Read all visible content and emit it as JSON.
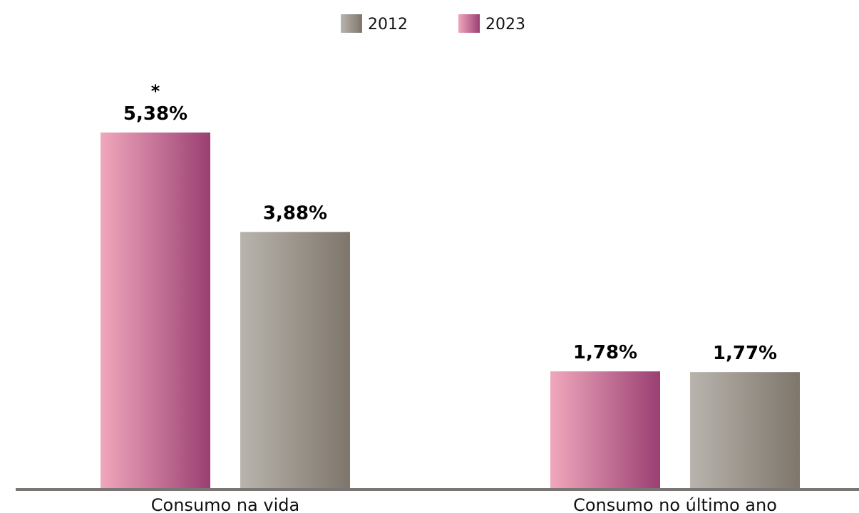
{
  "chart_data": {
    "type": "bar",
    "categories": [
      "Consumo na vida",
      "Consumo no último ano"
    ],
    "series": [
      {
        "name": "2023",
        "values": [
          5.38,
          1.78
        ],
        "labels": [
          "5,38%",
          "1,78%"
        ],
        "gradient": [
          "#f0a8bc",
          "#9a3f72"
        ]
      },
      {
        "name": "2012",
        "values": [
          3.88,
          1.77
        ],
        "labels": [
          "3,88%",
          "1,77%"
        ],
        "gradient": [
          "#b9b4ae",
          "#7e766b"
        ]
      }
    ],
    "legend": [
      {
        "name": "2012",
        "gradient": [
          "#b9b4ae",
          "#7e766b"
        ]
      },
      {
        "name": "2023",
        "gradient": [
          "#f0a8bc",
          "#9a3f72"
        ]
      }
    ],
    "legend_position": "top-center",
    "annotations": [
      {
        "category": "Consumo na vida",
        "series": "2023",
        "text": "*"
      }
    ],
    "ylim": [
      0,
      5.38
    ],
    "grid": false,
    "baseline_color": "#7a7572"
  }
}
